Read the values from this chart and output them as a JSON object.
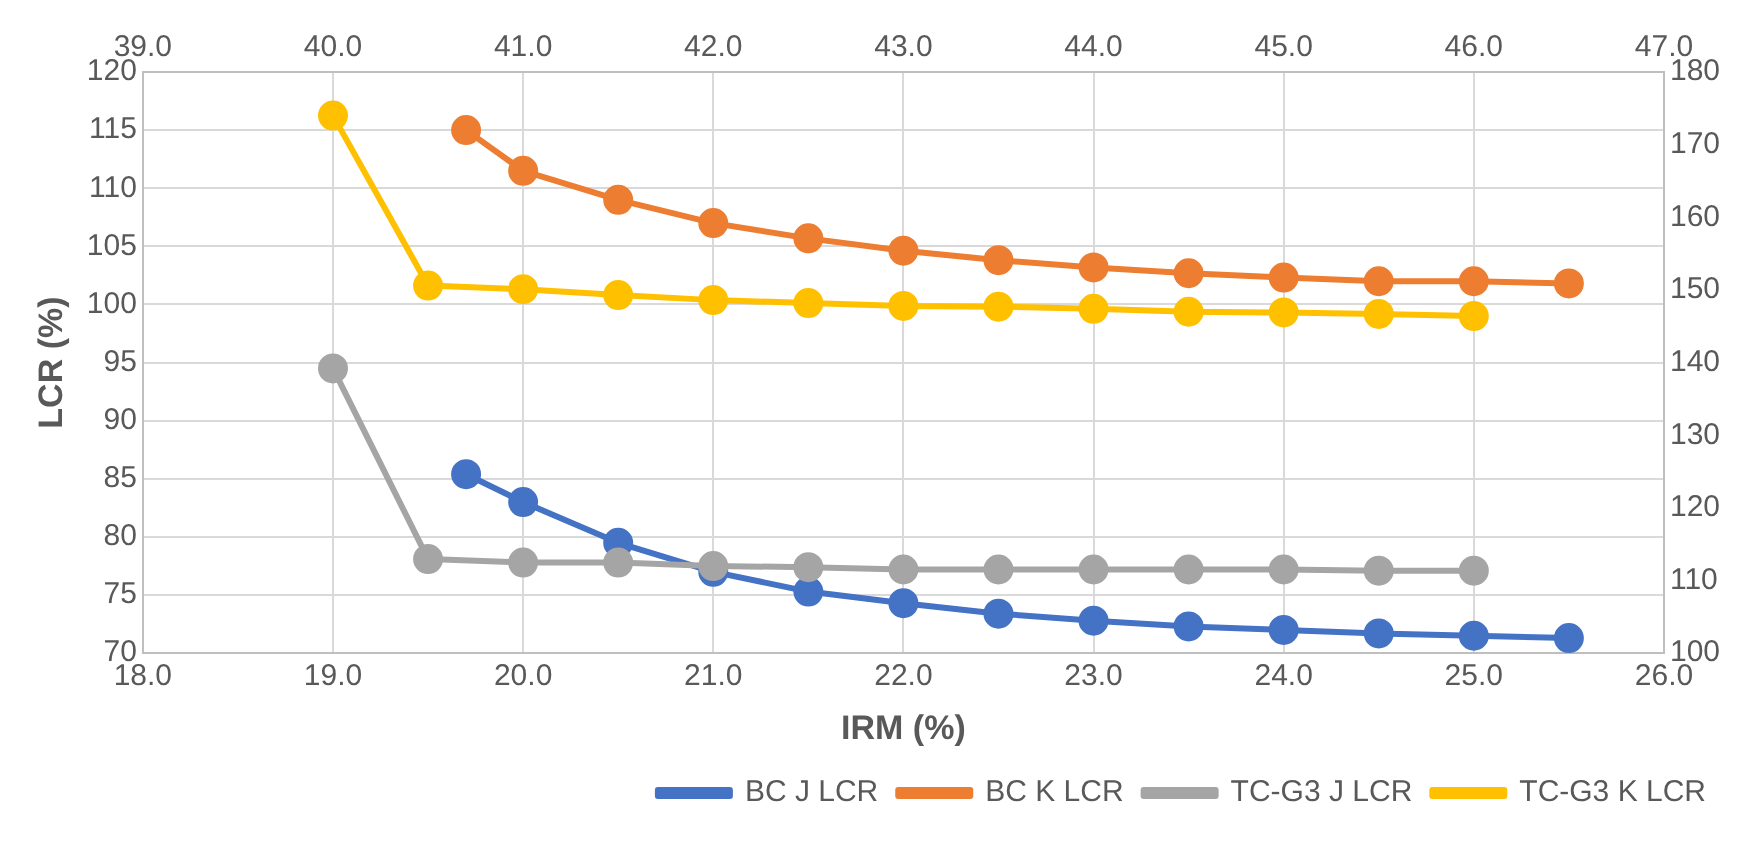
{
  "chart_data": {
    "type": "line",
    "xlabel": "IRM (%)",
    "ylabel": "LCR (%)",
    "xlim": [
      18,
      26
    ],
    "xticks": [
      {
        "value": 18,
        "label": "18.0"
      },
      {
        "value": 19,
        "label": "19.0"
      },
      {
        "value": 20,
        "label": "20.0"
      },
      {
        "value": 21,
        "label": "21.0"
      },
      {
        "value": 22,
        "label": "22.0"
      },
      {
        "value": 23,
        "label": "23.0"
      },
      {
        "value": 24,
        "label": "24.0"
      },
      {
        "value": 25,
        "label": "25.0"
      },
      {
        "value": 26,
        "label": "26.0"
      }
    ],
    "x2lim": [
      39,
      47
    ],
    "x2ticks": [
      {
        "value": 39,
        "label": "39.0"
      },
      {
        "value": 40,
        "label": "40.0"
      },
      {
        "value": 41,
        "label": "41.0"
      },
      {
        "value": 42,
        "label": "42.0"
      },
      {
        "value": 43,
        "label": "43.0"
      },
      {
        "value": 44,
        "label": "44.0"
      },
      {
        "value": 45,
        "label": "45.0"
      },
      {
        "value": 46,
        "label": "46.0"
      },
      {
        "value": 47,
        "label": "47.0"
      }
    ],
    "ylim": [
      70,
      120
    ],
    "yticks": [
      70,
      75,
      80,
      85,
      90,
      95,
      100,
      105,
      110,
      115,
      120
    ],
    "y2lim": [
      100,
      180
    ],
    "y2ticks": [
      100,
      110,
      120,
      130,
      140,
      150,
      160,
      170,
      180
    ],
    "grid": true,
    "legend": "bottom right",
    "marker": "circle",
    "line_style": "solid",
    "series": [
      {
        "name": "BC J LCR",
        "color": "#4472c4",
        "x": [
          19.7,
          20,
          20.5,
          21,
          21.5,
          22,
          22.5,
          23,
          23.5,
          24,
          24.5,
          25,
          25.5
        ],
        "values": [
          85.4,
          83,
          79.5,
          77,
          75.3,
          74.3,
          73.4,
          72.8,
          72.3,
          72,
          71.7,
          71.5,
          71.3
        ]
      },
      {
        "name": "BC K LCR",
        "color": "#ed7d31",
        "axis": "y2",
        "x": [
          19.7,
          20,
          20.5,
          21,
          21.5,
          22,
          22.5,
          23,
          23.5,
          24,
          24.5,
          25,
          25.5
        ],
        "values": [
          172,
          166.4,
          162.4,
          159.2,
          157.1,
          155.4,
          154.1,
          153.1,
          152.3,
          151.7,
          151.2,
          151.2,
          150.9
        ]
      },
      {
        "name": "TC-G3 J LCR",
        "color": "#a5a5a5",
        "x": [
          19,
          19.5,
          20,
          20.5,
          21,
          21.5,
          22,
          22.5,
          23,
          23.5,
          24,
          24.5,
          25
        ],
        "values": [
          94.5,
          78.1,
          77.8,
          77.8,
          77.5,
          77.4,
          77.2,
          77.2,
          77.2,
          77.2,
          77.2,
          77.1,
          77.1
        ]
      },
      {
        "name": "TC-G3 K LCR",
        "color": "#ffc000",
        "axis": "y2",
        "x": [
          19,
          19.5,
          20,
          20.5,
          21,
          21.5,
          22,
          22.5,
          23,
          23.5,
          24,
          24.5,
          25
        ],
        "values": [
          174,
          150.6,
          150.1,
          149.3,
          148.6,
          148.2,
          147.8,
          147.7,
          147.4,
          147,
          146.9,
          146.7,
          146.4
        ]
      }
    ]
  }
}
